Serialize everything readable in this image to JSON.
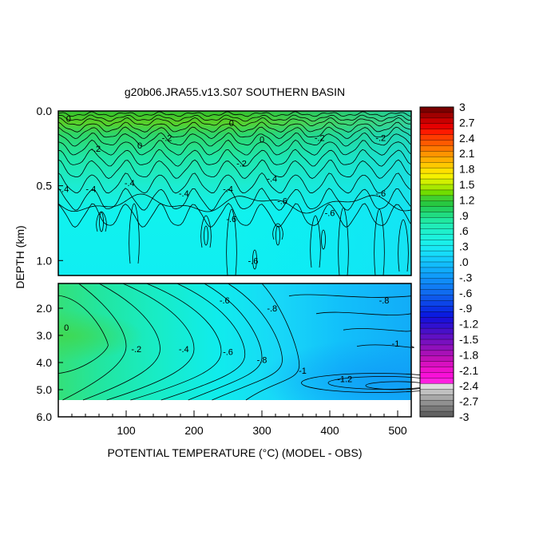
{
  "chart_data": {
    "type": "heatmap",
    "title": "g20b06.JRA55.v13.S07 SOUTHERN BASIN",
    "xlabel": "POTENTIAL TEMPERATURE (°C) (MODEL - OBS)",
    "ylabel": "DEPTH (km)",
    "x_range": [
      0,
      520
    ],
    "x_ticks": [
      "100",
      "200",
      "300",
      "400",
      "500"
    ],
    "upper_panel": {
      "y_range": [
        0,
        1.1
      ],
      "y_ticks": [
        "0.0",
        "0.5",
        "1.0"
      ],
      "contour_labels": [
        {
          "text": "0",
          "x": 15,
          "y": 0.05
        },
        {
          "text": "-.2",
          "x": 55,
          "y": 0.25
        },
        {
          "text": "0",
          "x": 120,
          "y": 0.23
        },
        {
          "text": "-.2",
          "x": 160,
          "y": 0.18
        },
        {
          "text": "0",
          "x": 255,
          "y": 0.08
        },
        {
          "text": "-.2",
          "x": 270,
          "y": 0.35
        },
        {
          "text": "0",
          "x": 300,
          "y": 0.19
        },
        {
          "text": "-.2",
          "x": 385,
          "y": 0.18
        },
        {
          "text": "-.2",
          "x": 475,
          "y": 0.18
        },
        {
          "text": "-.4",
          "x": 8,
          "y": 0.52
        },
        {
          "text": "-.4",
          "x": 48,
          "y": 0.52
        },
        {
          "text": "-.4",
          "x": 105,
          "y": 0.48
        },
        {
          "text": "-.4",
          "x": 185,
          "y": 0.55
        },
        {
          "text": "-.4",
          "x": 250,
          "y": 0.52
        },
        {
          "text": "-.4",
          "x": 315,
          "y": 0.45
        },
        {
          "text": "-.6",
          "x": 255,
          "y": 0.72
        },
        {
          "text": "-.6",
          "x": 330,
          "y": 0.6
        },
        {
          "text": "-.6",
          "x": 400,
          "y": 0.68
        },
        {
          "text": "-.6",
          "x": 475,
          "y": 0.55
        },
        {
          "text": "-.6",
          "x": 287,
          "y": 1.0
        }
      ]
    },
    "lower_panel": {
      "y_range": [
        1.3,
        5.6
      ],
      "y_ticks": [
        "2.0",
        "3.0",
        "4.0",
        "5.0",
        "6.0"
      ],
      "contour_labels": [
        {
          "text": "0",
          "x": 12,
          "y": 2.7
        },
        {
          "text": "-.2",
          "x": 115,
          "y": 3.5
        },
        {
          "text": "-.4",
          "x": 185,
          "y": 3.5
        },
        {
          "text": "-.6",
          "x": 250,
          "y": 3.6
        },
        {
          "text": "-.6",
          "x": 245,
          "y": 1.7
        },
        {
          "text": "-.8",
          "x": 315,
          "y": 2.0
        },
        {
          "text": "-.8",
          "x": 300,
          "y": 3.9
        },
        {
          "text": "-.8",
          "x": 480,
          "y": 1.7
        },
        {
          "text": "-1",
          "x": 360,
          "y": 4.3
        },
        {
          "text": "-1",
          "x": 497,
          "y": 3.3
        },
        {
          "text": "-1.2",
          "x": 422,
          "y": 4.6
        }
      ]
    },
    "colorbar": {
      "levels": [
        "3",
        "2.7",
        "2.4",
        "2.1",
        "1.8",
        "1.5",
        "1.2",
        ".9",
        ".6",
        ".3",
        ".0",
        "-.3",
        "-.6",
        "-.9",
        "-1.2",
        "-1.5",
        "-1.8",
        "-2.1",
        "-2.4",
        "-2.7",
        "-3"
      ],
      "colors": [
        "#7a0000",
        "#a00000",
        "#c80000",
        "#e60000",
        "#ff1a00",
        "#ff3c00",
        "#ff5a00",
        "#ff7800",
        "#ff9400",
        "#ffae00",
        "#ffc800",
        "#ffe000",
        "#f5f000",
        "#d2f000",
        "#a8e800",
        "#70dd00",
        "#40d030",
        "#28c840",
        "#22d060",
        "#20dc80",
        "#20e8a0",
        "#20ecb8",
        "#1ef0cc",
        "#1cf2dc",
        "#1af0ea",
        "#18e8f4",
        "#16dcfa",
        "#14ccfc",
        "#12bcfc",
        "#10acfc",
        "#109cfa",
        "#108cf8",
        "#107cf4",
        "#106cf0",
        "#0e58ec",
        "#0c44e8",
        "#0a30e4",
        "#0a1ce0",
        "#1c10d8",
        "#3010d0",
        "#4810c8",
        "#6010c4",
        "#7810c0",
        "#9010bc",
        "#a810b8",
        "#c010b8",
        "#d810c0",
        "#ec10cc",
        "#f810d8",
        "#ff20e0",
        "#dddddd",
        "#c0c0c0",
        "#a8a8a8",
        "#909090",
        "#787878",
        "#606060"
      ]
    }
  }
}
